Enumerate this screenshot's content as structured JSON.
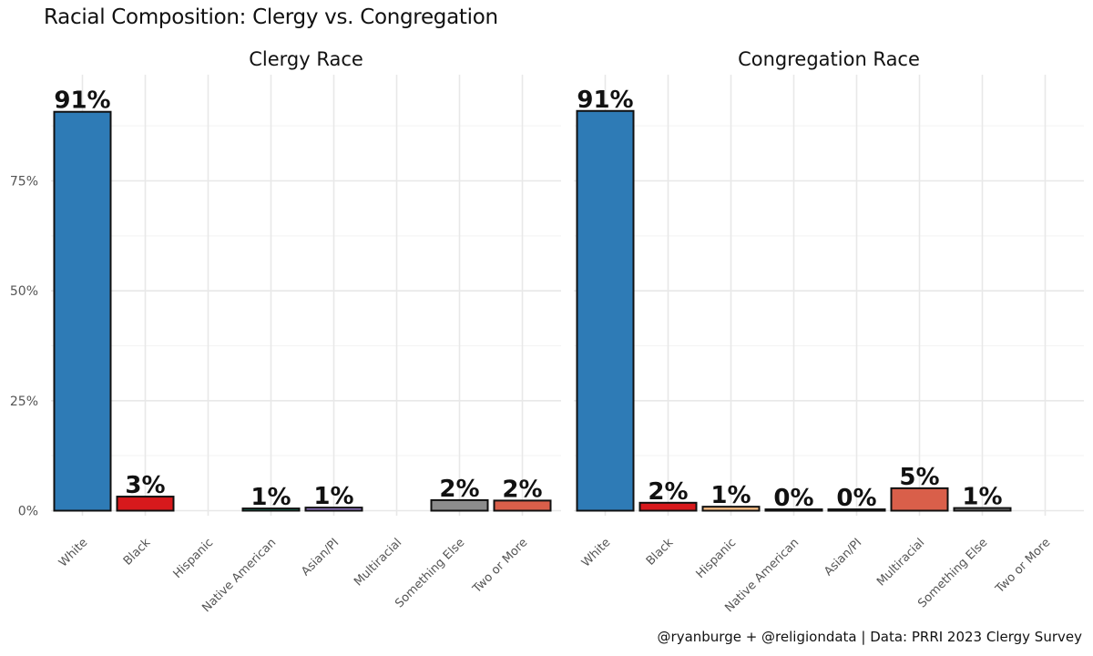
{
  "title": "Racial Composition: Clergy vs. Congregation",
  "caption": "@ryanburge + @religiondata | Data: PRRI 2023 Clergy Survey",
  "chart_data": [
    {
      "type": "bar",
      "facet_title": "Clergy Race",
      "categories": [
        "White",
        "Black",
        "Hispanic",
        "Native American",
        "Asian/PI",
        "Multiracial",
        "Something Else",
        "Two or More"
      ],
      "values": [
        90.7,
        3.2,
        null,
        0.5,
        0.7,
        null,
        2.4,
        2.3
      ],
      "labels": [
        "91%",
        "3%",
        "",
        "1%",
        "1%",
        "",
        "2%",
        "2%"
      ],
      "colors": [
        "#2e7bb6",
        "#d7191c",
        "#fdae61",
        "#1b9e77",
        "#9e7fd6",
        "#d95f4a",
        "#8c8c8c",
        "#d95f4a"
      ],
      "ylim": [
        0,
        100
      ],
      "yticks": [
        0,
        25,
        50,
        75
      ],
      "ytick_labels": [
        "0%",
        "25%",
        "50%",
        "75%"
      ],
      "grid": true
    },
    {
      "type": "bar",
      "facet_title": "Congregation Race",
      "categories": [
        "White",
        "Black",
        "Hispanic",
        "Native American",
        "Asian/PI",
        "Multiracial",
        "Something Else",
        "Two or More"
      ],
      "values": [
        90.9,
        1.8,
        0.9,
        0.3,
        0.3,
        5.1,
        0.6,
        null
      ],
      "labels": [
        "91%",
        "2%",
        "1%",
        "0%",
        "0%",
        "5%",
        "1%",
        ""
      ],
      "colors": [
        "#2e7bb6",
        "#d7191c",
        "#fdc086",
        "#1b9e77",
        "#1f77b4",
        "#d95f4a",
        "#8c8c8c",
        "#d95f4a"
      ],
      "ylim": [
        0,
        100
      ],
      "yticks": [
        0,
        25,
        50,
        75
      ],
      "ytick_labels": [
        "0%",
        "25%",
        "50%",
        "75%"
      ],
      "grid": true
    }
  ]
}
